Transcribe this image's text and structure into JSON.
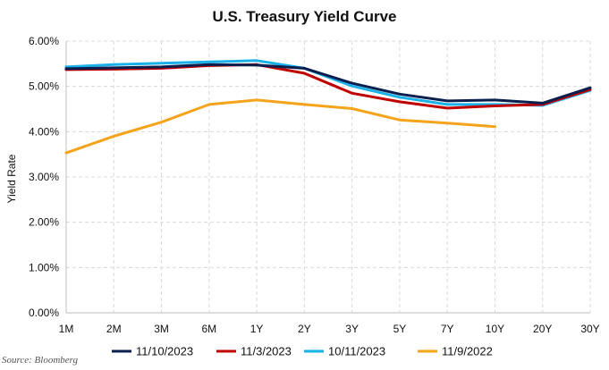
{
  "chart_data": {
    "type": "line",
    "title": "U.S. Treasury Yield Curve",
    "xlabel": "",
    "ylabel": "Yield Rate",
    "categories": [
      "1M",
      "2M",
      "3M",
      "6M",
      "1Y",
      "2Y",
      "3Y",
      "5Y",
      "7Y",
      "10Y",
      "20Y",
      "30Y"
    ],
    "ylim": [
      0,
      6
    ],
    "yticks": [
      "0.00%",
      "1.00%",
      "2.00%",
      "3.00%",
      "4.00%",
      "5.00%",
      "6.00%"
    ],
    "grid": true,
    "legend_position": "bottom",
    "series": [
      {
        "name": "11/10/2023",
        "color": "#0b1f4f",
        "values": [
          5.39,
          5.41,
          5.43,
          5.48,
          5.47,
          5.4,
          5.07,
          4.83,
          4.68,
          4.7,
          4.63,
          4.97
        ]
      },
      {
        "name": "11/3/2023",
        "color": "#c00000",
        "values": [
          5.37,
          5.38,
          5.4,
          5.46,
          5.48,
          5.29,
          4.85,
          4.66,
          4.52,
          4.57,
          4.6,
          4.93
        ]
      },
      {
        "name": "10/11/2023",
        "color": "#1ab0e8",
        "values": [
          5.43,
          5.48,
          5.51,
          5.54,
          5.57,
          5.4,
          5.01,
          4.76,
          4.6,
          4.6,
          4.58,
          4.91
        ]
      },
      {
        "name": "11/9/2022",
        "color": "#f5a31a",
        "values": [
          3.53,
          3.9,
          4.21,
          4.6,
          4.7,
          4.6,
          4.51,
          4.26,
          4.19,
          4.11,
          null,
          null
        ]
      }
    ]
  },
  "source_note": "Source: Bloomberg"
}
